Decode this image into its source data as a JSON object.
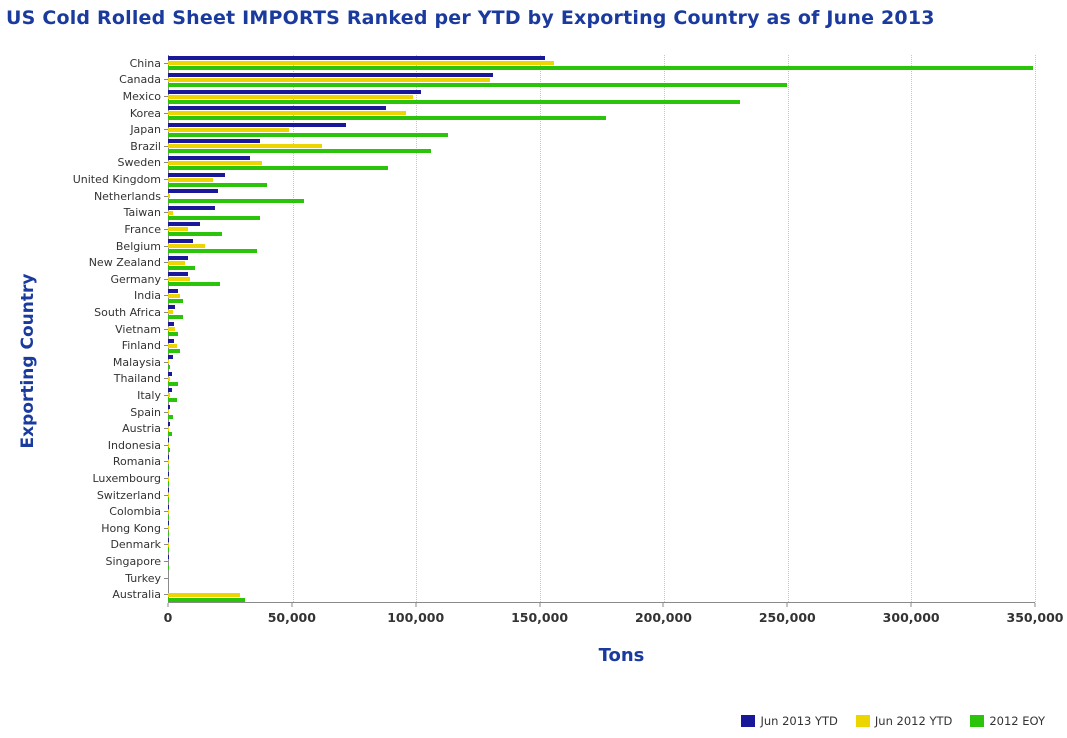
{
  "title": "US Cold Rolled Sheet IMPORTS Ranked per YTD by Exporting Country as of June 2013",
  "colors": {
    "title": "#1a3a9e",
    "axis_line": "#8a8a8a",
    "gridline": "#c4c4c4",
    "tick_text": "#333333"
  },
  "chart_data": {
    "type": "bar",
    "orientation": "horizontal",
    "title": "US Cold Rolled Sheet IMPORTS Ranked per YTD by Exporting Country as of June 2013",
    "xlabel": "Tons",
    "ylabel": "Exporting Country",
    "xlim": [
      0,
      350000
    ],
    "grid": true,
    "legend_position": "bottom-right",
    "xticks": [
      0,
      50000,
      100000,
      150000,
      200000,
      250000,
      300000,
      350000
    ],
    "xtick_labels": [
      "0",
      "50,000",
      "100,000",
      "150,000",
      "200,000",
      "250,000",
      "300,000",
      "350,000"
    ],
    "categories": [
      "China",
      "Canada",
      "Mexico",
      "Korea",
      "Japan",
      "Brazil",
      "Sweden",
      "United Kingdom",
      "Netherlands",
      "Taiwan",
      "France",
      "Belgium",
      "New Zealand",
      "Germany",
      "India",
      "South Africa",
      "Vietnam",
      "Finland",
      "Malaysia",
      "Thailand",
      "Italy",
      "Spain",
      "Austria",
      "Indonesia",
      "Romania",
      "Luxembourg",
      "Switzerland",
      "Colombia",
      "Hong Kong",
      "Denmark",
      "Singapore",
      "Turkey",
      "Australia"
    ],
    "series": [
      {
        "name": "Jun 2013 YTD",
        "color": "#181899",
        "values": [
          152000,
          131000,
          102000,
          88000,
          72000,
          37000,
          33000,
          23000,
          20000,
          19000,
          13000,
          10000,
          8000,
          8000,
          4000,
          3000,
          2500,
          2500,
          2000,
          1500,
          1500,
          1000,
          700,
          400,
          200,
          150,
          120,
          100,
          80,
          60,
          40,
          20,
          0
        ]
      },
      {
        "name": "Jun 2012 YTD",
        "color": "#edd500",
        "values": [
          156000,
          130000,
          99000,
          96000,
          49000,
          62000,
          38000,
          18000,
          1000,
          2000,
          8000,
          15000,
          7000,
          9000,
          5000,
          2000,
          3000,
          3500,
          300,
          1000,
          1000,
          600,
          500,
          300,
          100,
          100,
          80,
          60,
          50,
          40,
          20,
          10,
          29000
        ]
      },
      {
        "name": "2012 EOY",
        "color": "#2cc40a",
        "values": [
          349000,
          250000,
          231000,
          177000,
          113000,
          106000,
          89000,
          40000,
          55000,
          37000,
          22000,
          36000,
          11000,
          21000,
          6000,
          6000,
          4000,
          5000,
          1000,
          4000,
          3500,
          2000,
          1500,
          1000,
          400,
          300,
          200,
          150,
          100,
          80,
          50,
          30,
          31000
        ]
      }
    ]
  }
}
